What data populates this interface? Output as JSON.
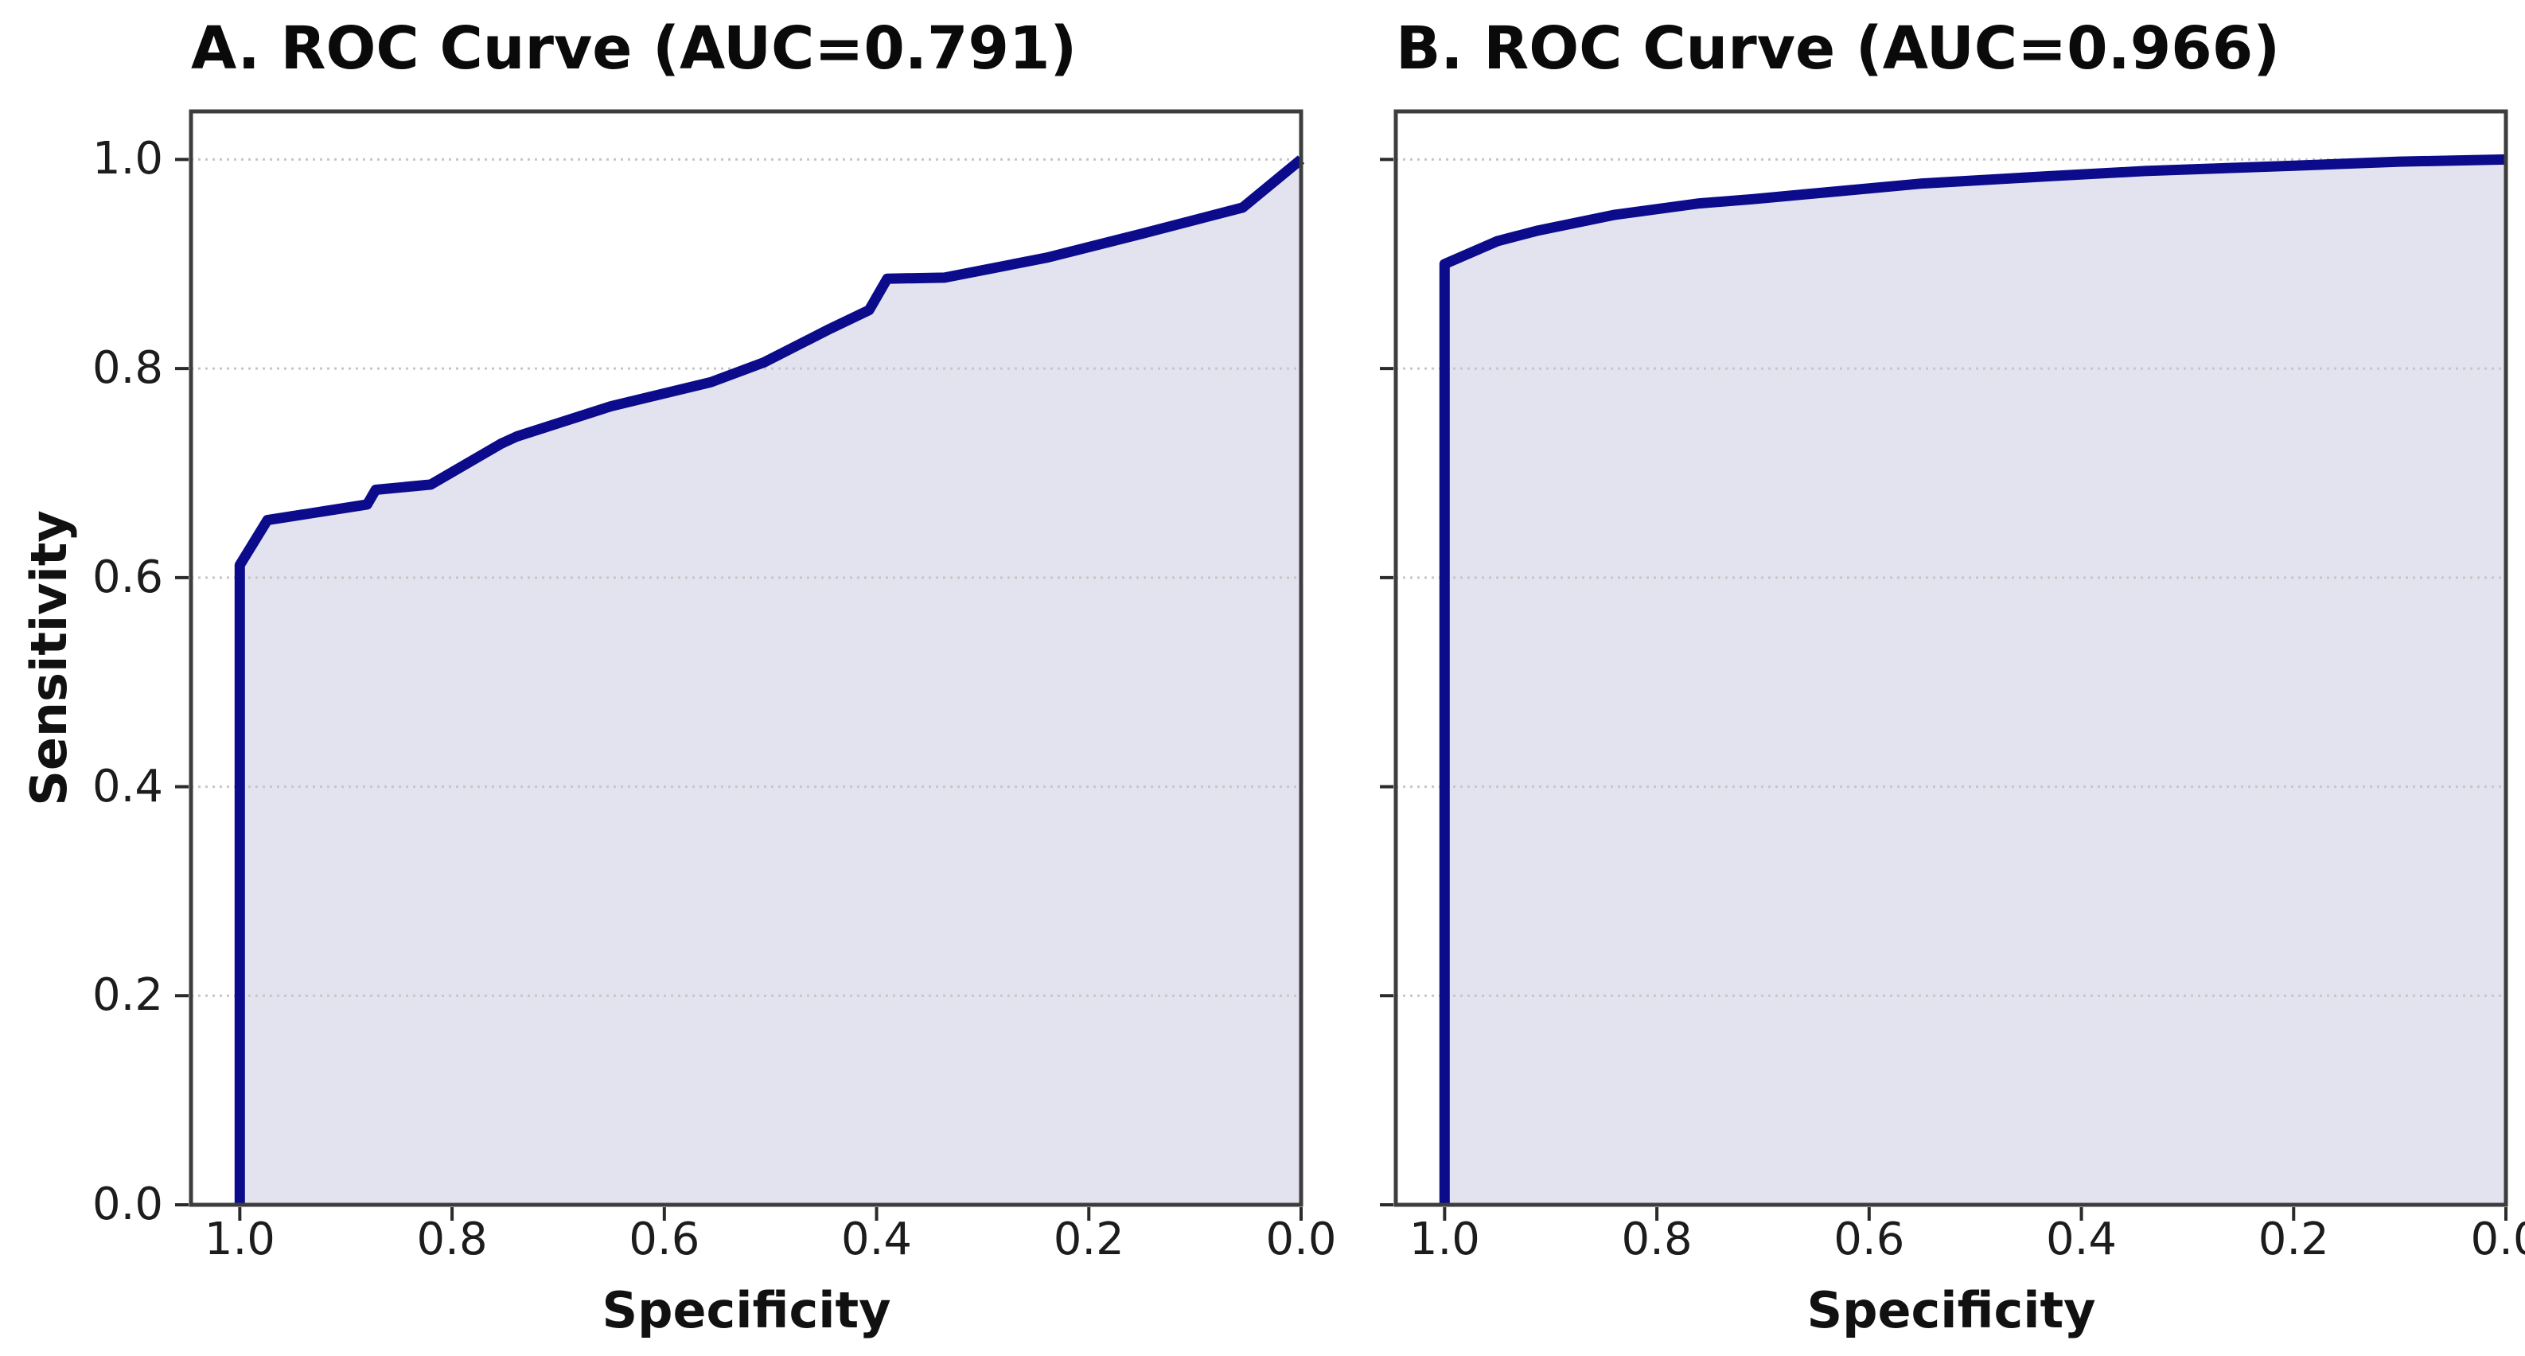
{
  "figure": {
    "background_color": "#ffffff",
    "n_panels": 2
  },
  "chart_data": [
    {
      "type": "area",
      "panel_label": "A",
      "title": "A. ROC Curve (AUC=0.791)",
      "auc": 0.791,
      "xlabel": "Specificity",
      "ylabel": "Sensitivity",
      "x_axis_reversed": true,
      "xlim": [
        1.046,
        0.0
      ],
      "ylim": [
        0.0,
        1.046
      ],
      "x_ticks": [
        1.0,
        0.8,
        0.6,
        0.4,
        0.2,
        0.0
      ],
      "x_tick_labels": [
        "1.0",
        "0.8",
        "0.6",
        "0.4",
        "0.2",
        "0.0"
      ],
      "y_ticks": [
        0.0,
        0.2,
        0.4,
        0.6,
        0.8,
        1.0
      ],
      "y_tick_labels": [
        "0.0",
        "0.2",
        "0.4",
        "0.6",
        "0.8",
        "1.0"
      ],
      "show_y_tick_labels": true,
      "grid": {
        "axis": "y",
        "style": "dotted",
        "color": "#c6c6c6"
      },
      "line_color": "#0b0b8b",
      "fill_color": "#e3e3f0",
      "spine_color": "#3d3d3d",
      "tick_color": "#2a2a2a",
      "roc_points": [
        [
          1.0,
          0.0
        ],
        [
          1.0,
          0.612
        ],
        [
          0.974,
          0.655
        ],
        [
          0.88,
          0.67
        ],
        [
          0.872,
          0.684
        ],
        [
          0.82,
          0.689
        ],
        [
          0.754,
          0.728
        ],
        [
          0.739,
          0.735
        ],
        [
          0.65,
          0.764
        ],
        [
          0.556,
          0.787
        ],
        [
          0.506,
          0.806
        ],
        [
          0.444,
          0.838
        ],
        [
          0.407,
          0.856
        ],
        [
          0.39,
          0.886
        ],
        [
          0.336,
          0.887
        ],
        [
          0.24,
          0.906
        ],
        [
          0.15,
          0.929
        ],
        [
          0.055,
          0.954
        ],
        [
          0.0,
          1.0
        ]
      ]
    },
    {
      "type": "area",
      "panel_label": "B",
      "title": "B. ROC Curve (AUC=0.966)",
      "auc": 0.966,
      "xlabel": "Specificity",
      "x_axis_reversed": true,
      "xlim": [
        1.046,
        0.0
      ],
      "ylim": [
        0.0,
        1.046
      ],
      "x_ticks": [
        1.0,
        0.8,
        0.6,
        0.4,
        0.2,
        0.0
      ],
      "x_tick_labels": [
        "1.0",
        "0.8",
        "0.6",
        "0.4",
        "0.2",
        "0.0"
      ],
      "y_ticks": [
        0.0,
        0.2,
        0.4,
        0.6,
        0.8,
        1.0
      ],
      "y_tick_labels": [
        "0.0",
        "0.2",
        "0.4",
        "0.6",
        "0.8",
        "1.0"
      ],
      "show_y_tick_labels": false,
      "grid": {
        "axis": "y",
        "style": "dotted",
        "color": "#c6c6c6"
      },
      "line_color": "#0b0b8b",
      "fill_color": "#e3e3f0",
      "spine_color": "#3d3d3d",
      "tick_color": "#2a2a2a",
      "roc_points": [
        [
          1.0,
          0.0
        ],
        [
          1.0,
          0.9
        ],
        [
          0.95,
          0.922
        ],
        [
          0.912,
          0.932
        ],
        [
          0.84,
          0.947
        ],
        [
          0.76,
          0.958
        ],
        [
          0.71,
          0.962
        ],
        [
          0.55,
          0.977
        ],
        [
          0.43,
          0.984
        ],
        [
          0.34,
          0.989
        ],
        [
          0.2,
          0.994
        ],
        [
          0.1,
          0.998
        ],
        [
          0.0,
          1.0
        ]
      ]
    }
  ]
}
